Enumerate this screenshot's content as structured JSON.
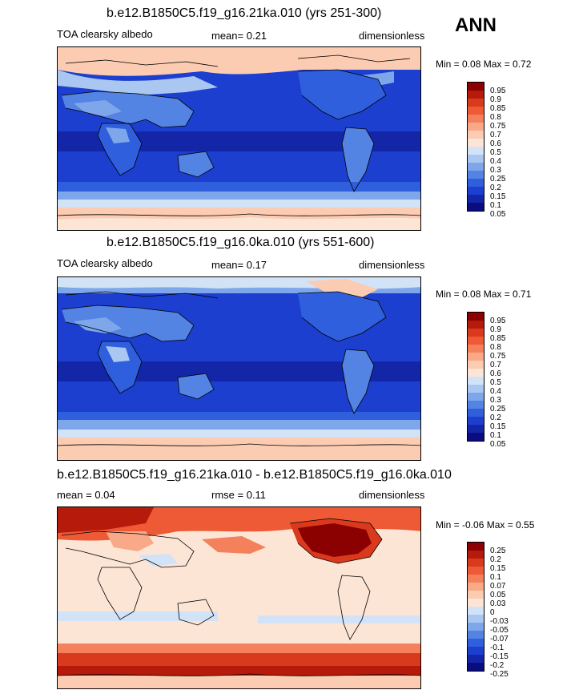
{
  "season": "ANN",
  "panels": [
    {
      "title": "b.e12.B1850C5.f19_g16.21ka.010 (yrs 251-300)",
      "left_label": "TOA clearsky albedo",
      "center_label": "mean=  0.21",
      "right_label": "dimensionless",
      "min_label": "Min =  0.08 Max =  0.72",
      "colorbar_ticks": [
        "0.95",
        "0.9",
        "0.85",
        "0.8",
        "0.75",
        "0.7",
        "0.6",
        "0.5",
        "0.4",
        "0.3",
        "0.25",
        "0.2",
        "0.15",
        "0.1",
        "0.05"
      ],
      "colorbar_colors": [
        "#8b0000",
        "#b51a0a",
        "#d93a1e",
        "#ee5a35",
        "#f4805c",
        "#f9a987",
        "#fbcbb2",
        "#fde5d6",
        "#d2e3f7",
        "#a9c7f0",
        "#7ea6ea",
        "#5383e3",
        "#2f5fdc",
        "#1c3fcf",
        "#1326a8",
        "#0a0c80"
      ]
    },
    {
      "title": "b.e12.B1850C5.f19_g16.0ka.010 (yrs 551-600)",
      "left_label": "TOA clearsky albedo",
      "center_label": "mean=  0.17",
      "right_label": "dimensionless",
      "min_label": "Min =  0.08 Max =  0.71",
      "colorbar_ticks": [
        "0.95",
        "0.9",
        "0.85",
        "0.8",
        "0.75",
        "0.7",
        "0.6",
        "0.5",
        "0.4",
        "0.3",
        "0.25",
        "0.2",
        "0.15",
        "0.1",
        "0.05"
      ],
      "colorbar_colors": [
        "#8b0000",
        "#b51a0a",
        "#d93a1e",
        "#ee5a35",
        "#f4805c",
        "#f9a987",
        "#fbcbb2",
        "#fde5d6",
        "#d2e3f7",
        "#a9c7f0",
        "#7ea6ea",
        "#5383e3",
        "#2f5fdc",
        "#1c3fcf",
        "#1326a8",
        "#0a0c80"
      ]
    },
    {
      "title": "b.e12.B1850C5.f19_g16.21ka.010 - b.e12.B1850C5.f19_g16.0ka.010",
      "left_label": "mean =  0.04",
      "center_label": "rmse =  0.11",
      "right_label": "dimensionless",
      "min_label": "Min =  -0.06 Max =  0.55",
      "colorbar_ticks": [
        "0.25",
        "0.2",
        "0.15",
        "0.1",
        "0.07",
        "0.05",
        "0.03",
        "0",
        "-0.03",
        "-0.05",
        "-0.07",
        "-0.1",
        "-0.15",
        "-0.2",
        "-0.25"
      ],
      "colorbar_colors": [
        "#8b0000",
        "#b51a0a",
        "#d93a1e",
        "#ee5a35",
        "#f4805c",
        "#f9a987",
        "#fbcbb2",
        "#fde5d6",
        "#d2e3f7",
        "#a9c7f0",
        "#7ea6ea",
        "#5383e3",
        "#2f5fdc",
        "#1c3fcf",
        "#1326a8",
        "#0a0c80"
      ]
    }
  ],
  "colors": {
    "deep_blue": "#1c3fcf",
    "mid_blue": "#2f5fdc",
    "light_blue": "#7ea6ea",
    "pale_blue": "#d2e3f7",
    "pale_orange": "#fbcbb2",
    "peach": "#fde5d6",
    "red": "#d93a1e",
    "dark_red": "#8b0000"
  }
}
